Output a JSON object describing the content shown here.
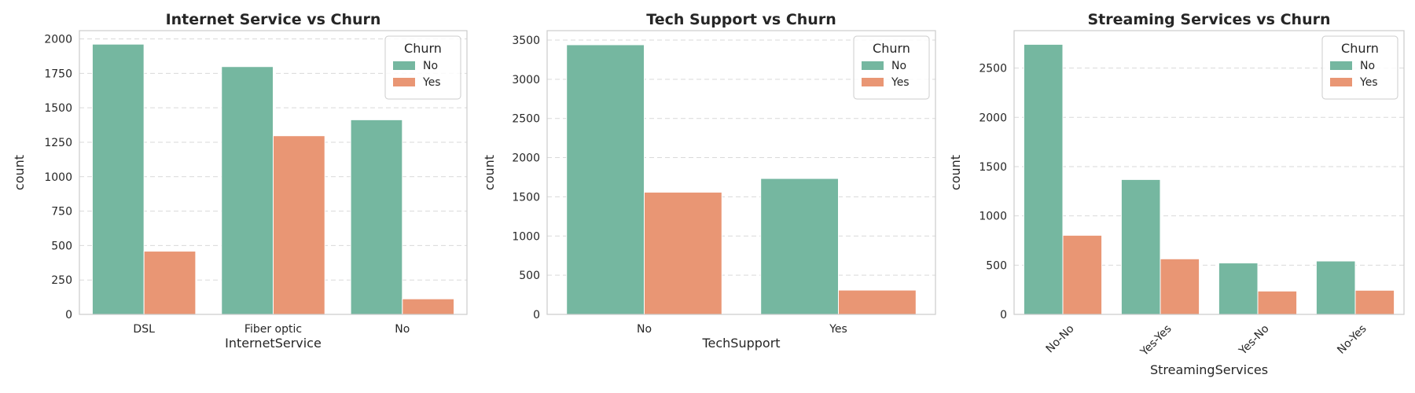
{
  "chart_data": [
    {
      "type": "bar",
      "title": "Internet Service vs Churn",
      "xlabel": "InternetService",
      "ylabel": "count",
      "categories": [
        "DSL",
        "Fiber optic",
        "No"
      ],
      "series": [
        {
          "name": "No",
          "values": [
            1962,
            1799,
            1413
          ]
        },
        {
          "name": "Yes",
          "values": [
            459,
            1297,
            113
          ]
        }
      ],
      "ylim": [
        0,
        2060
      ],
      "yticks": [
        0,
        250,
        500,
        750,
        1000,
        1250,
        1500,
        1750,
        2000
      ],
      "xtick_rotation": 0,
      "grid": "y-dashed",
      "legend": {
        "title": "Churn",
        "position": "top-right"
      }
    },
    {
      "type": "bar",
      "title": "Tech Support vs Churn",
      "xlabel": "TechSupport",
      "ylabel": "count",
      "categories": [
        "No",
        "Yes"
      ],
      "series": [
        {
          "name": "No",
          "values": [
            3440,
            1734
          ]
        },
        {
          "name": "Yes",
          "values": [
            1559,
            310
          ]
        }
      ],
      "ylim": [
        0,
        3620
      ],
      "yticks": [
        0,
        500,
        1000,
        1500,
        2000,
        2500,
        3000,
        3500
      ],
      "xtick_rotation": 0,
      "grid": "y-dashed",
      "legend": {
        "title": "Churn",
        "position": "top-right"
      }
    },
    {
      "type": "bar",
      "title": "Streaming Services vs Churn",
      "xlabel": "StreamingServices",
      "ylabel": "count",
      "categories": [
        "No-No",
        "Yes-Yes",
        "Yes-No",
        "No-Yes"
      ],
      "series": [
        {
          "name": "No",
          "values": [
            2741,
            1369,
            522,
            542
          ]
        },
        {
          "name": "Yes",
          "values": [
            803,
            564,
            237,
            245
          ]
        }
      ],
      "ylim": [
        0,
        2880
      ],
      "yticks": [
        0,
        500,
        1000,
        1500,
        2000,
        2500
      ],
      "xtick_rotation": -45,
      "grid": "y-dashed",
      "legend": {
        "title": "Churn",
        "position": "top-right"
      }
    }
  ],
  "colors": {
    "No": "#75b7a0",
    "Yes": "#e99674",
    "grid": "#d9d9d9",
    "spine": "#cccccc",
    "text": "#262626"
  }
}
